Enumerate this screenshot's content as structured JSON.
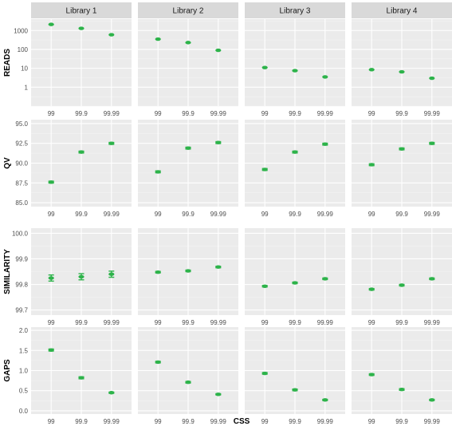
{
  "colors": {
    "panel_bg": "#ebebeb",
    "grid_major": "#ffffff",
    "grid_minor": "#f4f4f4",
    "strip_bg": "#d9d9d9",
    "point": "#2db34a",
    "tick_text": "#4d4d4d"
  },
  "chart_data": {
    "type": "scatter",
    "facet_columns": [
      "Library 1",
      "Library 2",
      "Library 3",
      "Library 4"
    ],
    "xlabel": "CSS",
    "x_categories": [
      "99",
      "99.9",
      "99.99"
    ],
    "rows": [
      {
        "ylabel": "READS",
        "scale": "log10",
        "ylim": [
          0.1,
          4000
        ],
        "yticks": [
          1,
          10,
          100,
          1000
        ],
        "ytick_labels": [
          "1",
          "10",
          "100",
          "1000"
        ],
        "panels": [
          {
            "values": [
              2100,
              1300,
              600
            ],
            "err": [
              0,
              0,
              0
            ]
          },
          {
            "values": [
              350,
              230,
              90
            ],
            "err": [
              0,
              0,
              0
            ]
          },
          {
            "values": [
              11,
              7.5,
              3.5
            ],
            "err": [
              0,
              0,
              0
            ]
          },
          {
            "values": [
              8.5,
              6.5,
              3
            ],
            "err": [
              0,
              0,
              0
            ]
          }
        ]
      },
      {
        "ylabel": "QV",
        "scale": "linear",
        "ylim": [
          84.5,
          95.5
        ],
        "yticks": [
          85.0,
          87.5,
          90.0,
          92.5,
          95.0
        ],
        "ytick_labels": [
          "85.0",
          "87.5",
          "90.0",
          "92.5",
          "95.0"
        ],
        "panels": [
          {
            "values": [
              87.6,
              91.4,
              92.5
            ],
            "err": [
              0.12,
              0.12,
              0.12
            ]
          },
          {
            "values": [
              88.9,
              91.9,
              92.6
            ],
            "err": [
              0.12,
              0.12,
              0.12
            ]
          },
          {
            "values": [
              89.2,
              91.4,
              92.4
            ],
            "err": [
              0.12,
              0.12,
              0.12
            ]
          },
          {
            "values": [
              89.8,
              91.8,
              92.5
            ],
            "err": [
              0.12,
              0.12,
              0.12
            ]
          }
        ]
      },
      {
        "ylabel": "SIMILARITY",
        "scale": "linear",
        "ylim": [
          99.68,
          100.02
        ],
        "yticks": [
          99.7,
          99.8,
          99.9,
          100.0
        ],
        "ytick_labels": [
          "99.7",
          "99.8",
          "99.9",
          "100.0"
        ],
        "panels": [
          {
            "values": [
              99.825,
              99.83,
              99.84
            ],
            "err": [
              0.012,
              0.012,
              0.012
            ]
          },
          {
            "values": [
              99.848,
              99.853,
              99.868
            ],
            "err": [
              0.003,
              0.003,
              0.003
            ]
          },
          {
            "values": [
              99.793,
              99.806,
              99.822
            ],
            "err": [
              0.003,
              0.003,
              0.003
            ]
          },
          {
            "values": [
              99.781,
              99.797,
              99.822
            ],
            "err": [
              0.003,
              0.003,
              0.003
            ]
          }
        ]
      },
      {
        "ylabel": "GAPS",
        "scale": "linear",
        "ylim": [
          -0.08,
          2.08
        ],
        "yticks": [
          0.0,
          0.5,
          1.0,
          1.5,
          2.0
        ],
        "ytick_labels": [
          "0.0",
          "0.5",
          "1.0",
          "1.5",
          "2.0"
        ],
        "panels": [
          {
            "values": [
              1.51,
              0.82,
              0.45
            ],
            "err": [
              0.025,
              0.025,
              0.015
            ]
          },
          {
            "values": [
              1.21,
              0.71,
              0.41
            ],
            "err": [
              0.02,
              0.02,
              0.015
            ]
          },
          {
            "values": [
              0.93,
              0.52,
              0.27
            ],
            "err": [
              0.02,
              0.02,
              0.015
            ]
          },
          {
            "values": [
              0.9,
              0.53,
              0.27
            ],
            "err": [
              0.02,
              0.02,
              0.015
            ]
          }
        ]
      }
    ]
  }
}
